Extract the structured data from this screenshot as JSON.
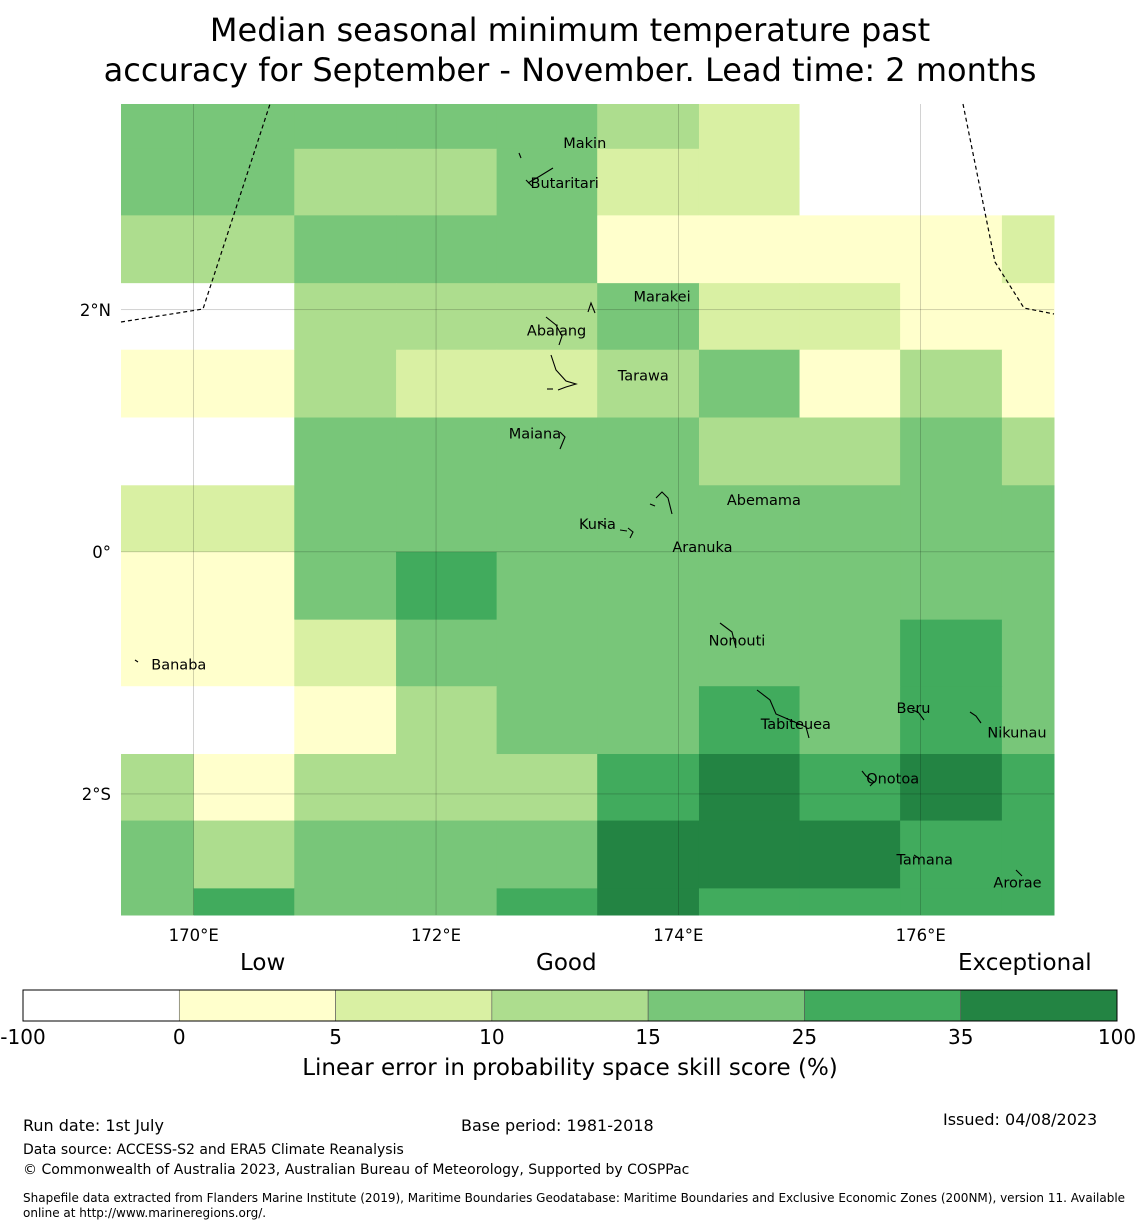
{
  "title_line1": "Median seasonal minimum temperature past",
  "title_line2": "accuracy for September - November. Lead time: 2 months",
  "map": {
    "lon_min": 169.4,
    "lon_max": 177.1,
    "lat_min": -3.0,
    "lat_max": 3.7,
    "x_ticks": [
      {
        "value": 170,
        "label": "170°E"
      },
      {
        "value": 172,
        "label": "172°E"
      },
      {
        "value": 174,
        "label": "174°E"
      },
      {
        "value": 176,
        "label": "176°E"
      }
    ],
    "y_ticks": [
      {
        "value": 2,
        "label": "2°N"
      },
      {
        "value": 0,
        "label": "0°"
      },
      {
        "value": -2,
        "label": "2°S"
      }
    ],
    "grid": true,
    "col_edges": [
      169.4,
      170.0,
      170.83,
      171.67,
      172.5,
      173.33,
      174.17,
      175.0,
      175.83,
      176.67,
      177.1
    ],
    "row_edges": [
      3.7,
      3.33,
      2.78,
      2.22,
      1.67,
      1.11,
      0.55,
      0.0,
      -0.56,
      -1.11,
      -1.67,
      -2.22,
      -2.78,
      -3.0
    ],
    "cells": [
      [
        4,
        4,
        4,
        4,
        4,
        3,
        2,
        0,
        0,
        0
      ],
      [
        4,
        4,
        3,
        3,
        4,
        2,
        2,
        0,
        0,
        0
      ],
      [
        3,
        3,
        4,
        4,
        4,
        1,
        1,
        1,
        1,
        2
      ],
      [
        0,
        0,
        3,
        3,
        3,
        4,
        2,
        2,
        1,
        1
      ],
      [
        1,
        1,
        3,
        2,
        2,
        3,
        4,
        1,
        3,
        1
      ],
      [
        0,
        0,
        4,
        4,
        4,
        4,
        3,
        3,
        4,
        3
      ],
      [
        2,
        2,
        4,
        4,
        4,
        4,
        4,
        4,
        4,
        4
      ],
      [
        1,
        1,
        4,
        5,
        4,
        4,
        4,
        4,
        4,
        4
      ],
      [
        1,
        1,
        2,
        4,
        4,
        4,
        4,
        4,
        5,
        4
      ],
      [
        0,
        0,
        1,
        3,
        4,
        4,
        5,
        4,
        5,
        4
      ],
      [
        3,
        1,
        3,
        3,
        3,
        5,
        6,
        5,
        6,
        5
      ],
      [
        4,
        3,
        4,
        4,
        4,
        6,
        6,
        6,
        5,
        5
      ],
      [
        4,
        5,
        4,
        4,
        5,
        6,
        5,
        5,
        5,
        5
      ]
    ],
    "place_labels": [
      {
        "name": "Makin",
        "lon": 173.05,
        "lat": 3.37
      },
      {
        "name": "Butaritari",
        "lon": 172.78,
        "lat": 3.04
      },
      {
        "name": "Marakei",
        "lon": 173.63,
        "lat": 2.1
      },
      {
        "name": "Abaiang",
        "lon": 172.75,
        "lat": 1.82
      },
      {
        "name": "Tarawa",
        "lon": 173.5,
        "lat": 1.45
      },
      {
        "name": "Maiana",
        "lon": 172.6,
        "lat": 0.97
      },
      {
        "name": "Abemama",
        "lon": 174.4,
        "lat": 0.42
      },
      {
        "name": "Kuria",
        "lon": 173.18,
        "lat": 0.22
      },
      {
        "name": "Aranuka",
        "lon": 173.95,
        "lat": 0.03
      },
      {
        "name": "Banaba",
        "lon": 169.65,
        "lat": -0.94
      },
      {
        "name": "Nonouti",
        "lon": 174.25,
        "lat": -0.74
      },
      {
        "name": "Tabiteuea",
        "lon": 174.68,
        "lat": -1.43
      },
      {
        "name": "Beru",
        "lon": 175.8,
        "lat": -1.3
      },
      {
        "name": "Nikunau",
        "lon": 176.55,
        "lat": -1.5
      },
      {
        "name": "Onotoa",
        "lon": 175.55,
        "lat": -1.88
      },
      {
        "name": "Tamana",
        "lon": 175.8,
        "lat": -2.55
      },
      {
        "name": "Arorae",
        "lon": 176.6,
        "lat": -2.74
      }
    ]
  },
  "colorbar": {
    "colors": [
      "#ffffff",
      "#ffffcc",
      "#d9f0a3",
      "#addd8e",
      "#78c679",
      "#41ab5d",
      "#238443"
    ],
    "ticks": [
      "-100",
      "0",
      "5",
      "10",
      "15",
      "25",
      "35",
      "100"
    ],
    "categories": {
      "low": "Low",
      "good": "Good",
      "exceptional": "Exceptional"
    },
    "label": "Linear error in probability space skill score (%)"
  },
  "footer": {
    "run_date": "Run date: 1st July",
    "base_period": "Base period: 1981-2018",
    "issued": "Issued: 04/08/2023",
    "data_source": "Data source: ACCESS-S2 and ERA5 Climate Reanalysis",
    "copyright": "© Commonwealth of Australia 2023, Australian Bureau of Meteorology, Supported by COSPPac",
    "shapefile": "Shapefile data extracted from Flanders Marine Institute (2019), Maritime Boundaries Geodatabase: Maritime Boundaries and Exclusive Economic Zones (200NM), version 11. Available online at http://www.marineregions.org/."
  }
}
